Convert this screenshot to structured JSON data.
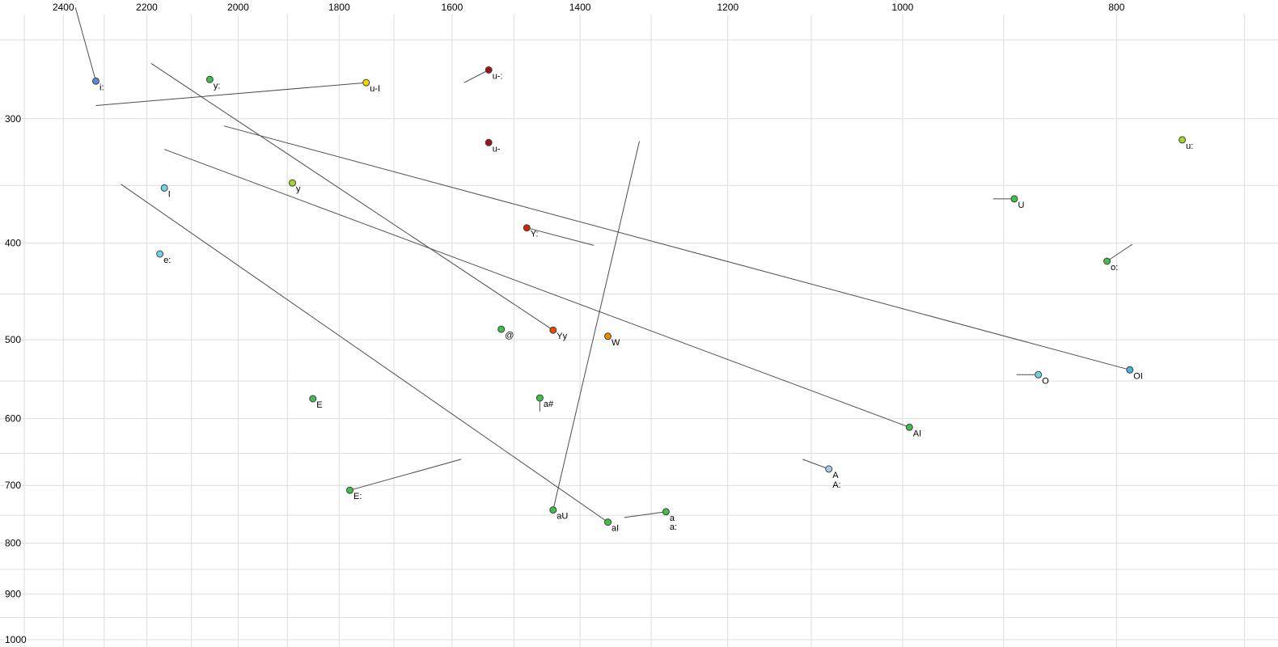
{
  "window": {
    "background": "#ffffff"
  },
  "chart_data": {
    "type": "scatter",
    "x_axis": {
      "position": "top",
      "scale": "log",
      "reversed": true,
      "left_edge_value": 2564,
      "right_edge_value": 676,
      "ticks": [
        2400,
        2200,
        2000,
        1800,
        1600,
        1400,
        1200,
        1000,
        800
      ],
      "grid_min": 700,
      "grid_max": 2500,
      "grid_step": 100
    },
    "y_axis": {
      "position": "left",
      "scale": "log",
      "top_edge_value": 228,
      "bottom_edge_value": 1017,
      "ticks": [
        300,
        400,
        500,
        600,
        700,
        800,
        900,
        1000
      ],
      "grid_min": 250,
      "grid_max": 1000,
      "grid_step": 50
    },
    "style": {
      "grid_color": "#dcdcdc",
      "line_color": "#4d4d4d",
      "dot_stroke": "#404040",
      "label_color": "#000000",
      "tick_color": "#000000",
      "dot_radius": 4
    },
    "points": [
      {
        "label": "i:",
        "f2": 2320,
        "f1": 275,
        "color": "#5c8bd6",
        "tail": {
          "f2": 2370,
          "f1": 232
        }
      },
      {
        "label": "y:",
        "f2": 2060,
        "f1": 274,
        "color": "#3fbf4a"
      },
      {
        "label": "u-I",
        "f2": 1750,
        "f1": 276,
        "color": "#f2d500",
        "tail": {
          "f2": 2320,
          "f1": 291
        }
      },
      {
        "label": "u-:",
        "f2": 1540,
        "f1": 268,
        "color": "#a01313",
        "tail": {
          "f2": 1580,
          "f1": 276
        }
      },
      {
        "label": "u-",
        "f2": 1540,
        "f1": 317,
        "color": "#a01313"
      },
      {
        "label": "u:",
        "f2": 747,
        "f1": 315,
        "color": "#a7d32c"
      },
      {
        "label": "y",
        "f2": 1890,
        "f1": 348,
        "color": "#a7d32c"
      },
      {
        "label": "I",
        "f2": 2160,
        "f1": 352,
        "color": "#72d2e3"
      },
      {
        "label": "U",
        "f2": 890,
        "f1": 361,
        "color": "#3fbf4a",
        "tail": {
          "f2": 910,
          "f1": 361
        }
      },
      {
        "label": "Y:",
        "f2": 1480,
        "f1": 386,
        "color": "#cf2600",
        "tail": {
          "f2": 1380,
          "f1": 402
        }
      },
      {
        "label": "e:",
        "f2": 2170,
        "f1": 410,
        "color": "#72d2e3"
      },
      {
        "label": "o:",
        "f2": 808,
        "f1": 417,
        "color": "#3fbf4a",
        "tail": {
          "f2": 787,
          "f1": 401
        }
      },
      {
        "label": "@",
        "f2": 1520,
        "f1": 488,
        "color": "#3fbf4a"
      },
      {
        "label": "Yy",
        "f2": 1440,
        "f1": 489,
        "color": "#e64d00",
        "tail": {
          "f2": 2190,
          "f1": 264
        }
      },
      {
        "label": "W",
        "f2": 1360,
        "f1": 496,
        "color": "#ef8a00"
      },
      {
        "label": "O",
        "f2": 868,
        "f1": 542,
        "color": "#72d2e3",
        "tail": {
          "f2": 888,
          "f1": 542
        }
      },
      {
        "label": "OI",
        "f2": 789,
        "f1": 536,
        "color": "#4fb3d9",
        "tail": {
          "f2": 2030,
          "f1": 305
        }
      },
      {
        "label": "E",
        "f2": 1850,
        "f1": 573,
        "color": "#3fbf4a"
      },
      {
        "label": "a#",
        "f2": 1460,
        "f1": 572,
        "color": "#3fbf4a",
        "tail": {
          "f2": 1460,
          "f1": 590
        }
      },
      {
        "label": "AI",
        "f2": 993,
        "f1": 612,
        "color": "#3fbf4a",
        "tail": {
          "f2": 2160,
          "f1": 322
        }
      },
      {
        "label": "A",
        "f2": 1080,
        "f1": 674,
        "color": "#a9c9ec",
        "tail": {
          "f2": 1110,
          "f1": 659
        }
      },
      {
        "label": "A:",
        "f2": 1080,
        "f1": 697,
        "color": "#a9c9ec",
        "dot": false
      },
      {
        "label": "E:",
        "f2": 1780,
        "f1": 708,
        "color": "#3fbf4a",
        "tail": {
          "f2": 1585,
          "f1": 659
        }
      },
      {
        "label": "aU",
        "f2": 1440,
        "f1": 741,
        "color": "#3fbf4a",
        "tail": {
          "f2": 1316,
          "f1": 316
        }
      },
      {
        "label": "aI",
        "f2": 1360,
        "f1": 762,
        "color": "#3fbf4a",
        "tail": {
          "f2": 2260,
          "f1": 349
        }
      },
      {
        "label": "a",
        "f2": 1280,
        "f1": 744,
        "color": "#3fbf4a",
        "tail": {
          "f2": 1337,
          "f1": 754
        }
      },
      {
        "label": "a:",
        "f2": 1280,
        "f1": 768,
        "color": "#3fbf4a",
        "dot": false
      }
    ]
  }
}
